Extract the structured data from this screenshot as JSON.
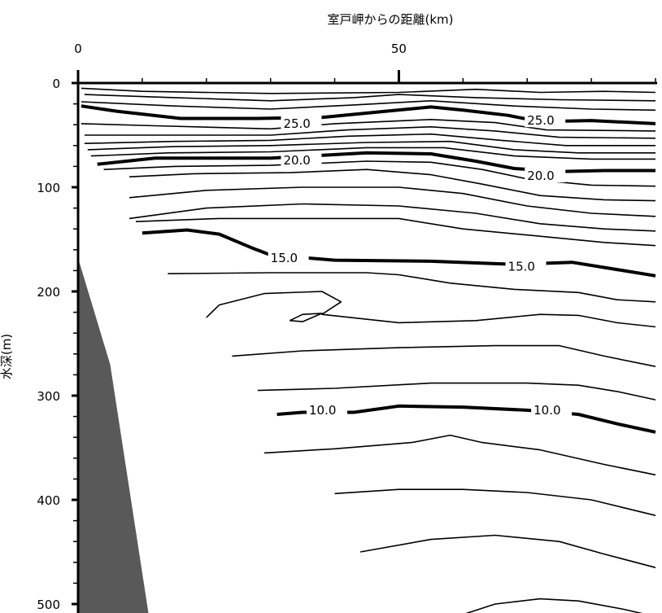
{
  "chart_data": {
    "type": "contour",
    "title": "",
    "xlabel": "室戸岬からの距離(km)",
    "ylabel": "水深(m)",
    "x_axis_position": "top",
    "xlim": [
      0,
      90
    ],
    "ylim": [
      0,
      500
    ],
    "y_inverted": true,
    "x_ticks": [
      0,
      50
    ],
    "y_ticks": [
      0,
      100,
      200,
      300,
      400,
      500
    ],
    "seabed": [
      [
        0,
        168
      ],
      [
        5,
        270
      ],
      [
        10,
        470
      ],
      [
        11,
        510
      ]
    ],
    "contour_line_color": "#000000",
    "seabed_color": "#595959",
    "contours": [
      {
        "level": "",
        "points": [
          [
            0.5,
            5
          ],
          [
            10,
            8
          ],
          [
            30,
            10
          ],
          [
            50,
            9
          ],
          [
            62,
            6
          ],
          [
            72,
            9
          ],
          [
            82,
            8
          ],
          [
            90,
            9
          ]
        ]
      },
      {
        "level": "",
        "points": [
          [
            1,
            11
          ],
          [
            15,
            14
          ],
          [
            30,
            17
          ],
          [
            43,
            14
          ],
          [
            50,
            11
          ],
          [
            62,
            14
          ],
          [
            75,
            16
          ],
          [
            90,
            17
          ]
        ]
      },
      {
        "level": "",
        "points": [
          [
            0.5,
            18
          ],
          [
            15,
            22
          ],
          [
            30,
            25
          ],
          [
            43,
            21
          ],
          [
            55,
            17
          ],
          [
            68,
            22
          ],
          [
            80,
            25
          ],
          [
            90,
            26
          ]
        ]
      },
      {
        "level": "25.0",
        "label_positions": [
          [
            32,
            43
          ],
          [
            70,
            40
          ]
        ],
        "points": [
          [
            0.5,
            22
          ],
          [
            6,
            27
          ],
          [
            16,
            34
          ],
          [
            28,
            34
          ],
          [
            38,
            33
          ],
          [
            48,
            27
          ],
          [
            55,
            23
          ],
          [
            60,
            26
          ],
          [
            67,
            31
          ],
          [
            72,
            37
          ],
          [
            80,
            36
          ],
          [
            90,
            39
          ]
        ]
      },
      {
        "level": "",
        "points": [
          [
            0.5,
            39
          ],
          [
            12,
            41
          ],
          [
            30,
            44
          ],
          [
            40,
            39
          ],
          [
            55,
            35
          ],
          [
            65,
            38
          ],
          [
            73,
            45
          ],
          [
            90,
            46
          ]
        ]
      },
      {
        "level": "",
        "points": [
          [
            1,
            50
          ],
          [
            15,
            50
          ],
          [
            30,
            50
          ],
          [
            42,
            45
          ],
          [
            55,
            42
          ],
          [
            65,
            46
          ],
          [
            75,
            52
          ],
          [
            90,
            53
          ]
        ]
      },
      {
        "level": "",
        "points": [
          [
            1,
            58
          ],
          [
            15,
            56
          ],
          [
            30,
            55
          ],
          [
            42,
            51
          ],
          [
            55,
            49
          ],
          [
            66,
            55
          ],
          [
            76,
            60
          ],
          [
            90,
            60
          ]
        ]
      },
      {
        "level": "",
        "points": [
          [
            1.5,
            64
          ],
          [
            15,
            61
          ],
          [
            30,
            60
          ],
          [
            45,
            57
          ],
          [
            58,
            56
          ],
          [
            68,
            64
          ],
          [
            78,
            67
          ],
          [
            90,
            67
          ]
        ]
      },
      {
        "level": "",
        "points": [
          [
            2,
            70
          ],
          [
            14,
            67
          ],
          [
            30,
            66
          ],
          [
            45,
            62
          ],
          [
            57,
            62
          ],
          [
            68,
            70
          ],
          [
            80,
            73
          ],
          [
            90,
            73
          ]
        ]
      },
      {
        "level": "20.0",
        "label_positions": [
          [
            32,
            78
          ],
          [
            70,
            93
          ]
        ],
        "points": [
          [
            3,
            78
          ],
          [
            12,
            72
          ],
          [
            30,
            72
          ],
          [
            45,
            67
          ],
          [
            55,
            68
          ],
          [
            62,
            75
          ],
          [
            68,
            82
          ],
          [
            75,
            85
          ],
          [
            82,
            84
          ],
          [
            90,
            84
          ]
        ]
      },
      {
        "level": "",
        "points": [
          [
            4,
            83
          ],
          [
            15,
            80
          ],
          [
            30,
            79
          ],
          [
            45,
            75
          ],
          [
            55,
            76
          ],
          [
            63,
            83
          ],
          [
            70,
            92
          ],
          [
            80,
            98
          ],
          [
            90,
            99
          ]
        ]
      },
      {
        "level": "",
        "points": [
          [
            8,
            90
          ],
          [
            18,
            87
          ],
          [
            33,
            86
          ],
          [
            45,
            83
          ],
          [
            55,
            88
          ],
          [
            63,
            97
          ],
          [
            72,
            108
          ],
          [
            82,
            112
          ],
          [
            90,
            113
          ]
        ]
      },
      {
        "level": "",
        "points": [
          [
            8,
            110
          ],
          [
            20,
            103
          ],
          [
            35,
            100
          ],
          [
            50,
            100
          ],
          [
            60,
            106
          ],
          [
            70,
            118
          ],
          [
            80,
            125
          ],
          [
            90,
            128
          ]
        ]
      },
      {
        "level": "",
        "points": [
          [
            8,
            130
          ],
          [
            20,
            120
          ],
          [
            35,
            116
          ],
          [
            50,
            118
          ],
          [
            62,
            125
          ],
          [
            72,
            135
          ],
          [
            82,
            140
          ],
          [
            90,
            142
          ]
        ]
      },
      {
        "level": "",
        "points": [
          [
            9,
            133
          ],
          [
            22,
            130
          ],
          [
            36,
            130
          ],
          [
            50,
            130
          ],
          [
            60,
            140
          ],
          [
            72,
            147
          ],
          [
            82,
            153
          ],
          [
            90,
            156
          ]
        ]
      },
      {
        "level": "15.0",
        "label_positions": [
          [
            30,
            172
          ],
          [
            67,
            180
          ]
        ],
        "points": [
          [
            10,
            144
          ],
          [
            17,
            141
          ],
          [
            22,
            145
          ],
          [
            27,
            158
          ],
          [
            30,
            165
          ],
          [
            40,
            170
          ],
          [
            55,
            171
          ],
          [
            68,
            174
          ],
          [
            77,
            172
          ],
          [
            85,
            180
          ],
          [
            90,
            185
          ]
        ]
      },
      {
        "level": "",
        "points": [
          [
            14,
            183
          ],
          [
            30,
            182
          ],
          [
            45,
            182
          ],
          [
            50,
            184
          ],
          [
            58,
            192
          ],
          [
            68,
            198
          ],
          [
            78,
            201
          ],
          [
            84,
            208
          ],
          [
            90,
            210
          ]
        ]
      },
      {
        "level": "",
        "points": [
          [
            20,
            225
          ],
          [
            22,
            213
          ],
          [
            29,
            202
          ],
          [
            38,
            200
          ],
          [
            41,
            210
          ],
          [
            38,
            222
          ],
          [
            50,
            230
          ],
          [
            62,
            228
          ],
          [
            72,
            222
          ],
          [
            78,
            223
          ],
          [
            84,
            230
          ],
          [
            90,
            234
          ]
        ]
      },
      {
        "level": "",
        "points": [
          [
            33,
            228
          ],
          [
            35,
            222
          ],
          [
            38,
            221
          ],
          [
            35,
            229
          ],
          [
            33,
            228
          ]
        ]
      },
      {
        "level": "",
        "points": [
          [
            24,
            262
          ],
          [
            35,
            257
          ],
          [
            50,
            254
          ],
          [
            65,
            252
          ],
          [
            75,
            252
          ],
          [
            82,
            262
          ],
          [
            90,
            272
          ]
        ]
      },
      {
        "level": "",
        "points": [
          [
            28,
            295
          ],
          [
            40,
            293
          ],
          [
            55,
            288
          ],
          [
            70,
            288
          ],
          [
            78,
            290
          ],
          [
            84,
            296
          ],
          [
            90,
            304
          ]
        ]
      },
      {
        "level": "10.0",
        "label_positions": [
          [
            36,
            318
          ],
          [
            71,
            318
          ]
        ],
        "points": [
          [
            31,
            318
          ],
          [
            35,
            316
          ],
          [
            43,
            316
          ],
          [
            50,
            310
          ],
          [
            60,
            311
          ],
          [
            70,
            314
          ],
          [
            78,
            318
          ],
          [
            84,
            327
          ],
          [
            90,
            335
          ]
        ]
      },
      {
        "level": "",
        "points": [
          [
            29,
            355
          ],
          [
            40,
            351
          ],
          [
            52,
            345
          ],
          [
            58,
            338
          ],
          [
            63,
            345
          ],
          [
            72,
            352
          ],
          [
            82,
            366
          ],
          [
            90,
            376
          ]
        ]
      },
      {
        "level": "",
        "points": [
          [
            40,
            394
          ],
          [
            50,
            390
          ],
          [
            60,
            390
          ],
          [
            70,
            393
          ],
          [
            80,
            400
          ],
          [
            90,
            415
          ]
        ]
      },
      {
        "level": "",
        "points": [
          [
            44,
            450
          ],
          [
            55,
            438
          ],
          [
            65,
            434
          ],
          [
            75,
            440
          ],
          [
            82,
            452
          ],
          [
            90,
            465
          ]
        ]
      },
      {
        "level": "",
        "points": [
          [
            60,
            510
          ],
          [
            65,
            500
          ],
          [
            72,
            495
          ],
          [
            78,
            497
          ],
          [
            85,
            505
          ],
          [
            90,
            512
          ]
        ]
      }
    ]
  }
}
